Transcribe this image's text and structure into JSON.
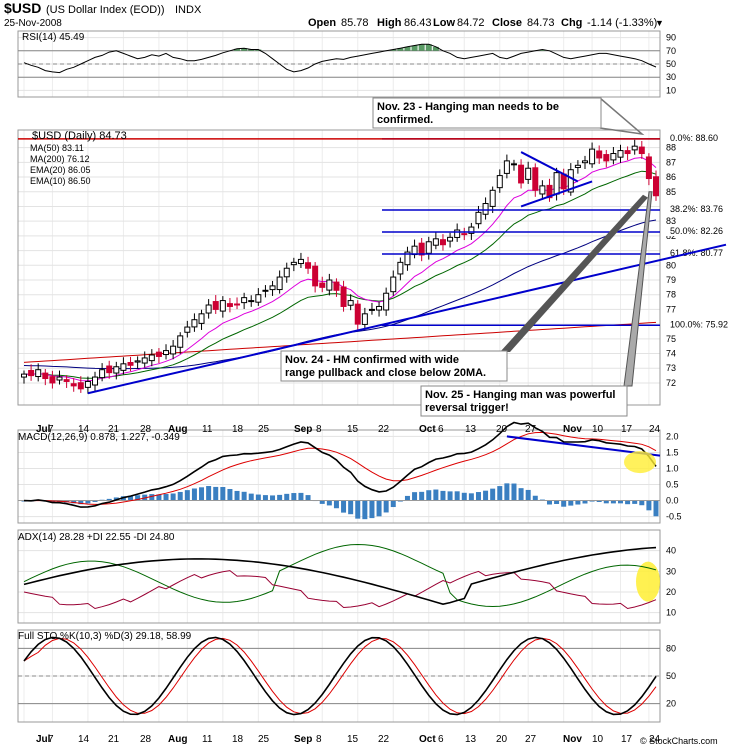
{
  "header": {
    "symbol": "$USD",
    "name": "(US Dollar Index (EOD))",
    "exchange": "INDX",
    "date": "25-Nov-2008",
    "open_label": "Open",
    "open": "85.78",
    "high_label": "High",
    "high": "86.43",
    "low_label": "Low",
    "low": "84.72",
    "close_label": "Close",
    "close": "84.73",
    "chg_label": "Chg",
    "chg": "-1.14 (-1.33%)",
    "watermark": "© StockCharts.com"
  },
  "annotations": {
    "nov23": "Nov. 23 - Hanging man needs to be confirmed.",
    "nov23_line1": "Nov. 23 - Hanging man needs to be",
    "nov23_line2": "confirmed.",
    "nov24_line1": "Nov. 24 -  HM confirmed with wide",
    "nov24_line2": "range pullback and close below 20MA.",
    "nov25_line1": "Nov. 25 - Hanging man was powerful",
    "nov25_line2": "reversal trigger!"
  },
  "colors": {
    "candle_up": "#000000",
    "candle_down": "#cc0033",
    "ma50": "#000080",
    "ma200": "#cc0000",
    "ema20": "#006600",
    "ema10": "#dd00dd",
    "trendline": "#0000cc",
    "fib": "#0000cc",
    "macd_hist": "#3a7fc1",
    "adx": "#000000",
    "plus_di": "#006600",
    "minus_di": "#990033",
    "highlight": "#ffee33"
  },
  "chart_data": [
    {
      "id": "rsi",
      "type": "line",
      "title": "RSI(14) 45.49",
      "ylim": [
        0,
        100
      ],
      "ticks": [
        "90",
        "70",
        "50",
        "30",
        "10"
      ],
      "values": [
        52,
        48,
        45,
        40,
        38,
        37,
        42,
        45,
        50,
        55,
        60,
        63,
        68,
        70,
        66,
        62,
        58,
        60,
        64,
        62,
        66,
        60,
        58,
        55,
        55,
        57,
        60,
        63,
        67,
        70,
        73,
        74,
        72,
        72,
        66,
        58,
        50,
        42,
        38,
        40,
        44,
        50,
        54,
        56,
        58,
        57,
        60,
        62,
        64,
        66,
        68,
        70,
        72,
        74,
        76,
        78,
        80,
        80,
        76,
        70,
        66,
        60,
        58,
        60,
        62,
        64,
        66,
        60,
        58,
        62,
        66,
        68,
        70,
        72,
        70,
        65,
        60,
        58,
        60,
        62,
        64,
        66,
        66,
        64,
        62,
        60,
        58,
        55,
        50,
        45.49
      ]
    },
    {
      "id": "price",
      "type": "candlestick",
      "title": "$USD (Daily) 84.73",
      "legend": [
        "MA(50) 83.11",
        "MA(200) 76.12",
        "EMA(20) 86.05",
        "EMA(10) 86.50"
      ],
      "ylim": [
        70.5,
        89.2
      ],
      "ticks": [
        "88",
        "87",
        "86",
        "85",
        "84",
        "83",
        "82",
        "81",
        "80",
        "79",
        "78",
        "77",
        "76",
        "75",
        "74",
        "73",
        "72"
      ],
      "fib_levels": [
        {
          "label": "0.0%: 88.60",
          "value": 88.6
        },
        {
          "label": "38.2%: 83.76",
          "value": 83.76
        },
        {
          "label": "50.0%: 82.26",
          "value": 82.26
        },
        {
          "label": "61.8%: 80.77",
          "value": 80.77
        },
        {
          "label": "100.0%: 75.92",
          "value": 75.92
        }
      ],
      "closes": [
        72.6,
        72.5,
        72.9,
        72.3,
        72.0,
        72.4,
        72.1,
        71.8,
        71.6,
        72.1,
        72.4,
        72.9,
        72.7,
        73.1,
        73.3,
        73.2,
        73.5,
        73.7,
        73.9,
        73.8,
        74.2,
        74.5,
        75.2,
        75.8,
        76.3,
        76.7,
        77.3,
        77.0,
        77.6,
        77.2,
        77.3,
        77.8,
        77.6,
        78.0,
        78.3,
        78.6,
        79.2,
        79.8,
        80.2,
        80.4,
        79.8,
        78.6,
        78.5,
        79.0,
        78.3,
        77.2,
        77.6,
        76.0,
        76.7,
        77.0,
        77.2,
        78.1,
        79.2,
        80.2,
        80.9,
        81.3,
        80.7,
        81.6,
        81.8,
        81.4,
        81.9,
        82.4,
        82.1,
        82.6,
        83.6,
        84.2,
        85.1,
        86.1,
        87.1,
        86.9,
        85.6,
        86.6,
        85.1,
        85.4,
        84.6,
        86.3,
        85.2,
        86.5,
        86.8,
        87.1,
        87.9,
        87.3,
        87.1,
        87.6,
        87.8,
        87.6,
        88.1,
        87.6,
        85.9,
        84.73
      ],
      "x_labels": [
        "Jul",
        "7",
        "14",
        "21",
        "28",
        "Aug",
        "11",
        "18",
        "25",
        "Sep",
        "8",
        "15",
        "22",
        "Oct",
        "6",
        "13",
        "20",
        "27",
        "Nov",
        "10",
        "17",
        "24"
      ]
    },
    {
      "id": "macd",
      "type": "line",
      "title": "MACD(12,26,9) 0.878, 1.227, -0.349",
      "ylim": [
        -0.7,
        2.2
      ],
      "ticks": [
        "2.0",
        "1.5",
        "1.0",
        "0.5",
        "0.0",
        "-0.5"
      ]
    },
    {
      "id": "adx",
      "type": "line",
      "title": "ADX(14) 28.28 +DI 22.55 -DI 24.80",
      "ylim": [
        5,
        50
      ],
      "ticks": [
        "40",
        "30",
        "20",
        "10"
      ]
    },
    {
      "id": "sto",
      "type": "line",
      "title": "Full STO %K(10,3) %D(3) 29.18, 58.99",
      "ylim": [
        0,
        100
      ],
      "ticks": [
        "80",
        "50",
        "20"
      ]
    }
  ]
}
